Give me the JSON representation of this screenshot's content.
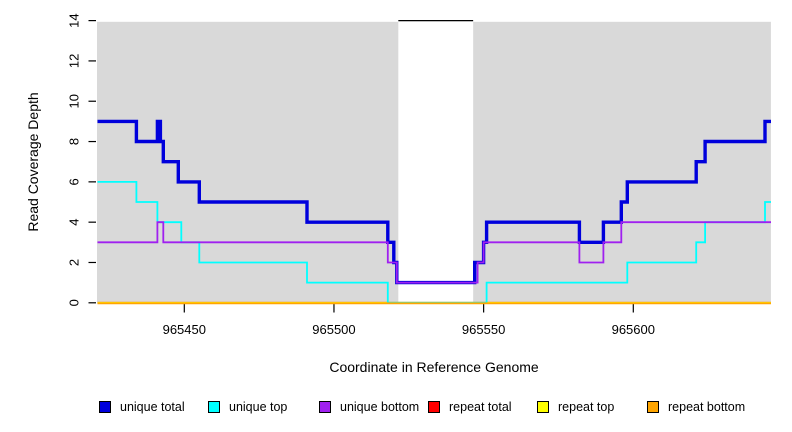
{
  "figure": {
    "background": "#ffffff",
    "plot_background": "#d9d9d9"
  },
  "chart_data": {
    "type": "line",
    "subtype": "step",
    "xlabel": "Coordinate in Reference Genome",
    "ylabel": "Read Coverage Depth",
    "xlim": [
      965421,
      965646
    ],
    "ylim": [
      0,
      14
    ],
    "x_ticks": [
      965450,
      965500,
      965550,
      965600
    ],
    "y_ticks": [
      0,
      2,
      4,
      6,
      8,
      10,
      12,
      14
    ],
    "grid": false,
    "legend_position": "bottom",
    "masked_region": {
      "start": 965521.5,
      "end": 965546.5,
      "fill": "#ffffff",
      "cap_value": 14,
      "cap_color": "#000000"
    },
    "series": [
      {
        "name": "unique total",
        "color": "#0000dc",
        "line_width": 3.4,
        "steps": [
          [
            965421,
            9
          ],
          [
            965434,
            8
          ],
          [
            965441,
            9
          ],
          [
            965442,
            8
          ],
          [
            965443,
            7
          ],
          [
            965448,
            6
          ],
          [
            965455,
            5
          ],
          [
            965491,
            4
          ],
          [
            965518,
            3
          ],
          [
            965520,
            2
          ],
          [
            965521,
            1
          ],
          [
            965547,
            2
          ],
          [
            965550,
            3
          ],
          [
            965551,
            4
          ],
          [
            965582,
            3
          ],
          [
            965590,
            4
          ],
          [
            965596,
            5
          ],
          [
            965598,
            6
          ],
          [
            965621,
            7
          ],
          [
            965624,
            8
          ],
          [
            965644,
            9
          ]
        ]
      },
      {
        "name": "unique top",
        "color": "#00ffff",
        "line_width": 1.8,
        "steps": [
          [
            965421,
            6
          ],
          [
            965434,
            5
          ],
          [
            965441,
            4
          ],
          [
            965449,
            3
          ],
          [
            965455,
            2
          ],
          [
            965491,
            1
          ],
          [
            965518,
            0
          ],
          [
            965551,
            1
          ],
          [
            965598,
            2
          ],
          [
            965621,
            3
          ],
          [
            965624,
            4
          ],
          [
            965644,
            5
          ]
        ]
      },
      {
        "name": "unique bottom",
        "color": "#a020f0",
        "line_width": 1.8,
        "steps": [
          [
            965421,
            3
          ],
          [
            965441,
            4
          ],
          [
            965443,
            3
          ],
          [
            965518,
            2
          ],
          [
            965521,
            1
          ],
          [
            965548,
            2
          ],
          [
            965550,
            3
          ],
          [
            965582,
            2
          ],
          [
            965590,
            3
          ],
          [
            965596,
            4
          ]
        ]
      },
      {
        "name": "repeat total",
        "color": "#ff0000",
        "line_width": 1.8,
        "steps": [
          [
            965421,
            0
          ]
        ]
      },
      {
        "name": "repeat top",
        "color": "#ffff00",
        "line_width": 1.8,
        "steps": [
          [
            965421,
            0
          ]
        ]
      },
      {
        "name": "repeat bottom",
        "color": "#ffa500",
        "line_width": 1.8,
        "steps": [
          [
            965421,
            0
          ]
        ]
      }
    ]
  },
  "legend": {
    "items": [
      {
        "label": "unique total",
        "color": "#0000dc"
      },
      {
        "label": "unique top",
        "color": "#00ffff"
      },
      {
        "label": "unique bottom",
        "color": "#a020f0"
      },
      {
        "label": "repeat total",
        "color": "#ff0000"
      },
      {
        "label": "repeat top",
        "color": "#ffff00"
      },
      {
        "label": "repeat bottom",
        "color": "#ffa500"
      }
    ]
  }
}
